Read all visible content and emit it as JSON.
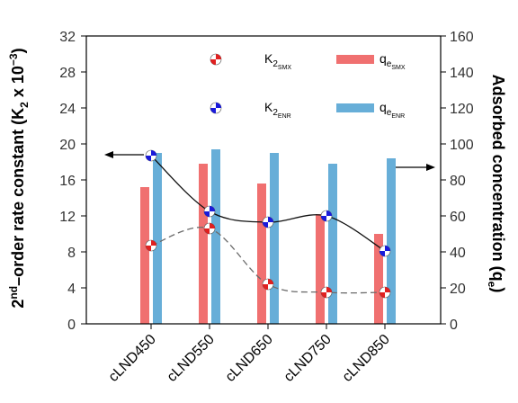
{
  "chart_data": {
    "type": "bar",
    "categories": [
      "cLND450",
      "cLND550",
      "cLND650",
      "cLND750",
      "cLND850"
    ],
    "left_axis": {
      "label_parts": {
        "sup_text": "2",
        "sup": "nd",
        "text": "–order rate constant (K",
        "sub": "2",
        "after": " x 10",
        "exp": "−3",
        "close": ")"
      },
      "ylim": [
        0,
        32
      ],
      "ticks": [
        0,
        4,
        8,
        12,
        16,
        20,
        24,
        28,
        32
      ]
    },
    "right_axis": {
      "label_parts": {
        "text": "Adsorbed concentration (q",
        "sub": "e",
        "close": ")"
      },
      "ylim": [
        0,
        160
      ],
      "ticks": [
        0,
        20,
        40,
        60,
        80,
        100,
        120,
        140,
        160
      ]
    },
    "bar_series": [
      {
        "name": "q_e_SMX",
        "legend": {
          "main": "q",
          "sub": "e",
          "subsub": "SMX"
        },
        "color": "#f07070",
        "axis": "right",
        "values": [
          76,
          89,
          78,
          61,
          50
        ]
      },
      {
        "name": "q_e_ENR",
        "legend": {
          "main": "q",
          "sub": "e",
          "subsub": "ENR"
        },
        "color": "#67aed8",
        "axis": "right",
        "values": [
          95,
          97,
          95,
          89,
          92
        ]
      }
    ],
    "line_series": [
      {
        "name": "K2_SMX",
        "legend": {
          "main": "K",
          "sub": "2",
          "subsub": "SMX"
        },
        "marker_color": "#e02020",
        "line_style": "dashed",
        "axis": "left",
        "values": [
          8.7,
          10.6,
          4.4,
          3.5,
          3.5
        ]
      },
      {
        "name": "K2_ENR",
        "legend": {
          "main": "K",
          "sub": "2",
          "subsub": "ENR"
        },
        "marker_color": "#1a1adb",
        "line_style": "solid",
        "axis": "left",
        "values": [
          18.7,
          12.5,
          11.3,
          12.0,
          8.1
        ]
      }
    ],
    "annotations": [
      "left-pointing arrow at K2_ENR cLND450 marker",
      "right-pointing arrow near cLND850 bars"
    ],
    "grid": false,
    "legend_position": "top-right"
  }
}
